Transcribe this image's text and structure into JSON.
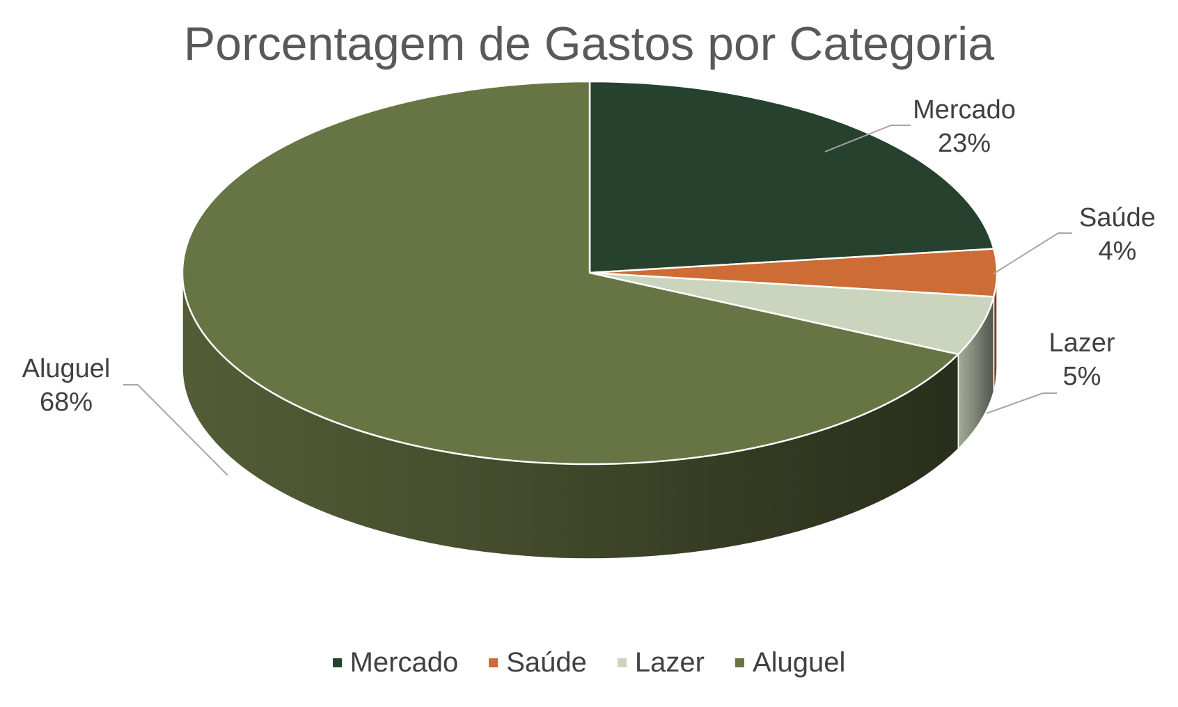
{
  "chart_data": {
    "type": "pie",
    "title": "Porcentagem de Gastos por Categoria",
    "categories": [
      "Mercado",
      "Saúde",
      "Lazer",
      "Aluguel"
    ],
    "values": [
      23,
      4,
      5,
      68
    ],
    "labels": [
      "Mercado\n23%",
      "Saúde\n4%",
      "Lazer\n5%",
      "Aluguel\n68%"
    ],
    "percent_labels": [
      "23%",
      "4%",
      "5%",
      "68%"
    ],
    "colors": [
      "#27412f",
      "#cd6c34",
      "#cbd5be",
      "#677444"
    ],
    "style": "3d",
    "legend_position": "bottom"
  }
}
